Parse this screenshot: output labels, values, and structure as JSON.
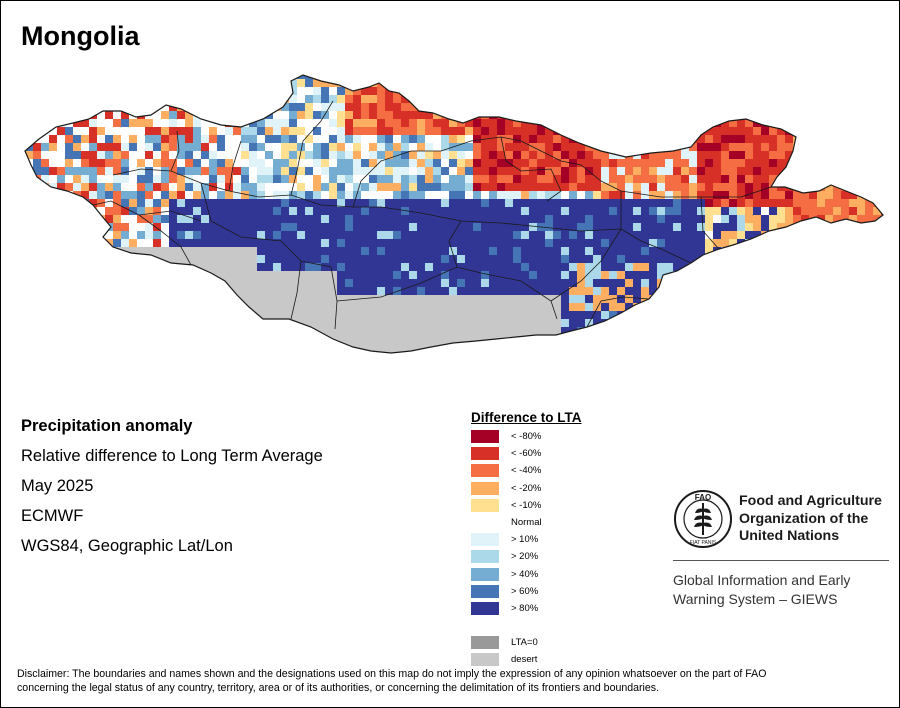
{
  "title": "Mongolia",
  "info": {
    "heading": "Precipitation anomaly",
    "subheading": "Relative difference to Long Term Average",
    "date": "May 2025",
    "source": "ECMWF",
    "projection": "WGS84, Geographic Lat/Lon"
  },
  "legend": {
    "title": "Difference to LTA",
    "items": [
      {
        "label": "< -80%",
        "color": "#a50026"
      },
      {
        "label": "< -60%",
        "color": "#d73027"
      },
      {
        "label": "< -40%",
        "color": "#f46d43"
      },
      {
        "label": "< -20%",
        "color": "#fdae61"
      },
      {
        "label": "< -10%",
        "color": "#fee090"
      },
      {
        "label": "Normal",
        "color": "#ffffff"
      },
      {
        "label": "> 10%",
        "color": "#e0f3f8"
      },
      {
        "label": "> 20%",
        "color": "#abd9e9"
      },
      {
        "label": "> 40%",
        "color": "#74add1"
      },
      {
        "label": "> 60%",
        "color": "#4575b4"
      },
      {
        "label": "> 80%",
        "color": "#313695"
      },
      {
        "label": "",
        "color": "#ffffff"
      },
      {
        "label": "LTA=0",
        "color": "#999999"
      },
      {
        "label": "desert",
        "color": "#c8c8c8"
      }
    ]
  },
  "organization": {
    "name_line1": "Food and Agriculture",
    "name_line2": "Organization of the",
    "name_line3": "United Nations",
    "system_line1": "Global Information and Early",
    "system_line2": "Warning System – GIEWS",
    "logo_icon": "fao-logo-icon",
    "logo_text_top": "FAO",
    "logo_text_bottom": "FIAT PANIS"
  },
  "disclaimer_line1": "Disclaimer: The boundaries and names shown and the designations used on this map do not imply the expression of any opinion whatsoever on the part of FAO",
  "disclaimer_line2": "concerning the legal status of any country, territory, area or of its authorities, or concerning the delimitation of its frontiers and boundaries."
}
